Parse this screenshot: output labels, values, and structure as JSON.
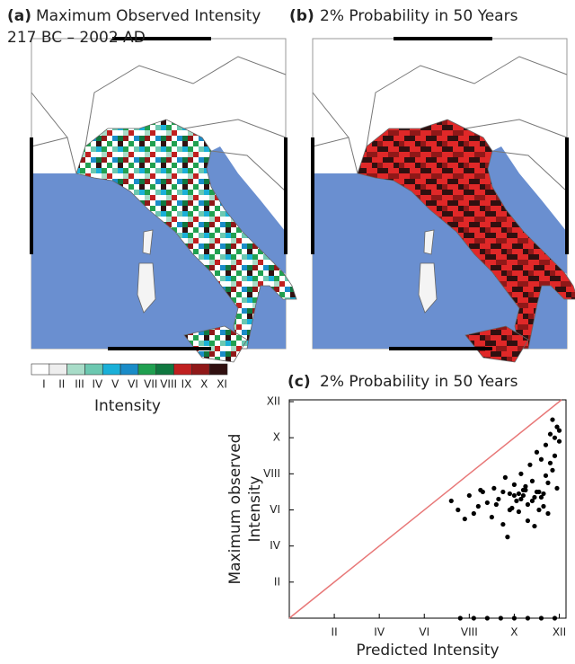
{
  "chart_data": [
    {
      "type": "map",
      "label": "(a)",
      "title": "Maximum Observed Intensity",
      "subtitle": "217 BC – 2002 AD",
      "colorbar": {
        "label": "Intensity",
        "categories": [
          "I",
          "II",
          "III",
          "IV",
          "V",
          "VI",
          "VII",
          "VIII",
          "IX",
          "X",
          "XI"
        ],
        "colors": [
          "#ffffff",
          "#eeeeee",
          "#a8dcc8",
          "#6cc8b0",
          "#1ab0d8",
          "#1a8cc8",
          "#20a050",
          "#107840",
          "#c02020",
          "#901818",
          "#301010"
        ]
      }
    },
    {
      "type": "map",
      "label": "(b)",
      "title": "2% Probability in 50 Years"
    },
    {
      "type": "scatter",
      "label": "(c)",
      "title": "2% Probability in 50 Years",
      "xlabel": "Predicted Intensity",
      "ylabel": [
        "Maximum observed",
        "Intensity"
      ],
      "color": "#000000",
      "line_color": "#e87878",
      "xlim": [
        0,
        12.3
      ],
      "ylim": [
        0,
        12.1
      ],
      "xticks": [
        {
          "value": 2,
          "label": "II"
        },
        {
          "value": 4,
          "label": "IV"
        },
        {
          "value": 6,
          "label": "VI"
        },
        {
          "value": 8,
          "label": "VIII"
        },
        {
          "value": 10,
          "label": "X"
        },
        {
          "value": 12,
          "label": "XII"
        }
      ],
      "yticks": [
        {
          "value": 2,
          "label": "II"
        },
        {
          "value": 4,
          "label": "IV"
        },
        {
          "value": 6,
          "label": "VI"
        },
        {
          "value": 8,
          "label": "VIII"
        },
        {
          "value": 10,
          "label": "X"
        },
        {
          "value": 12,
          "label": "XII"
        }
      ],
      "x": [
        7.2,
        7.5,
        7.8,
        8.0,
        8.2,
        8.4,
        8.6,
        8.8,
        9.0,
        9.1,
        9.3,
        9.5,
        9.6,
        9.8,
        9.9,
        10.0,
        10.1,
        10.2,
        10.3,
        10.4,
        10.5,
        10.6,
        10.7,
        10.8,
        10.9,
        11.0,
        11.1,
        11.2,
        11.3,
        11.4,
        11.5,
        11.6,
        11.7,
        11.8,
        11.9,
        12.0,
        10.2,
        10.5,
        10.8,
        11.0,
        11.2,
        11.4,
        11.6,
        11.8,
        12.0,
        9.5,
        9.8,
        10.3,
        10.6,
        11.1,
        11.5,
        11.9,
        10.0,
        10.4,
        10.9,
        11.3,
        11.7,
        8.5,
        9.2,
        9.7,
        7.6,
        8.2,
        8.8,
        9.4,
        10.0,
        10.6,
        11.2,
        11.8
      ],
      "y": [
        6.5,
        6.0,
        5.5,
        6.8,
        5.8,
        6.2,
        7.0,
        6.4,
        5.6,
        7.2,
        6.6,
        5.2,
        7.8,
        6.9,
        6.1,
        7.4,
        6.5,
        5.9,
        8.0,
        6.8,
        7.1,
        6.3,
        8.5,
        7.6,
        6.7,
        9.2,
        7.0,
        8.8,
        6.2,
        9.6,
        7.5,
        10.2,
        8.2,
        9.0,
        10.6,
        9.8,
        6.9,
        7.3,
        6.5,
        7.0,
        6.7,
        7.9,
        8.6,
        10.0,
        10.4,
        7.0,
        6.0,
        6.6,
        5.4,
        6.0,
        5.8,
        7.2,
        6.8,
        7.1,
        5.1,
        6.9,
        11.0,
        7.1,
        6.3,
        4.5,
        0,
        0,
        0,
        0,
        0,
        0,
        0,
        0
      ]
    }
  ]
}
